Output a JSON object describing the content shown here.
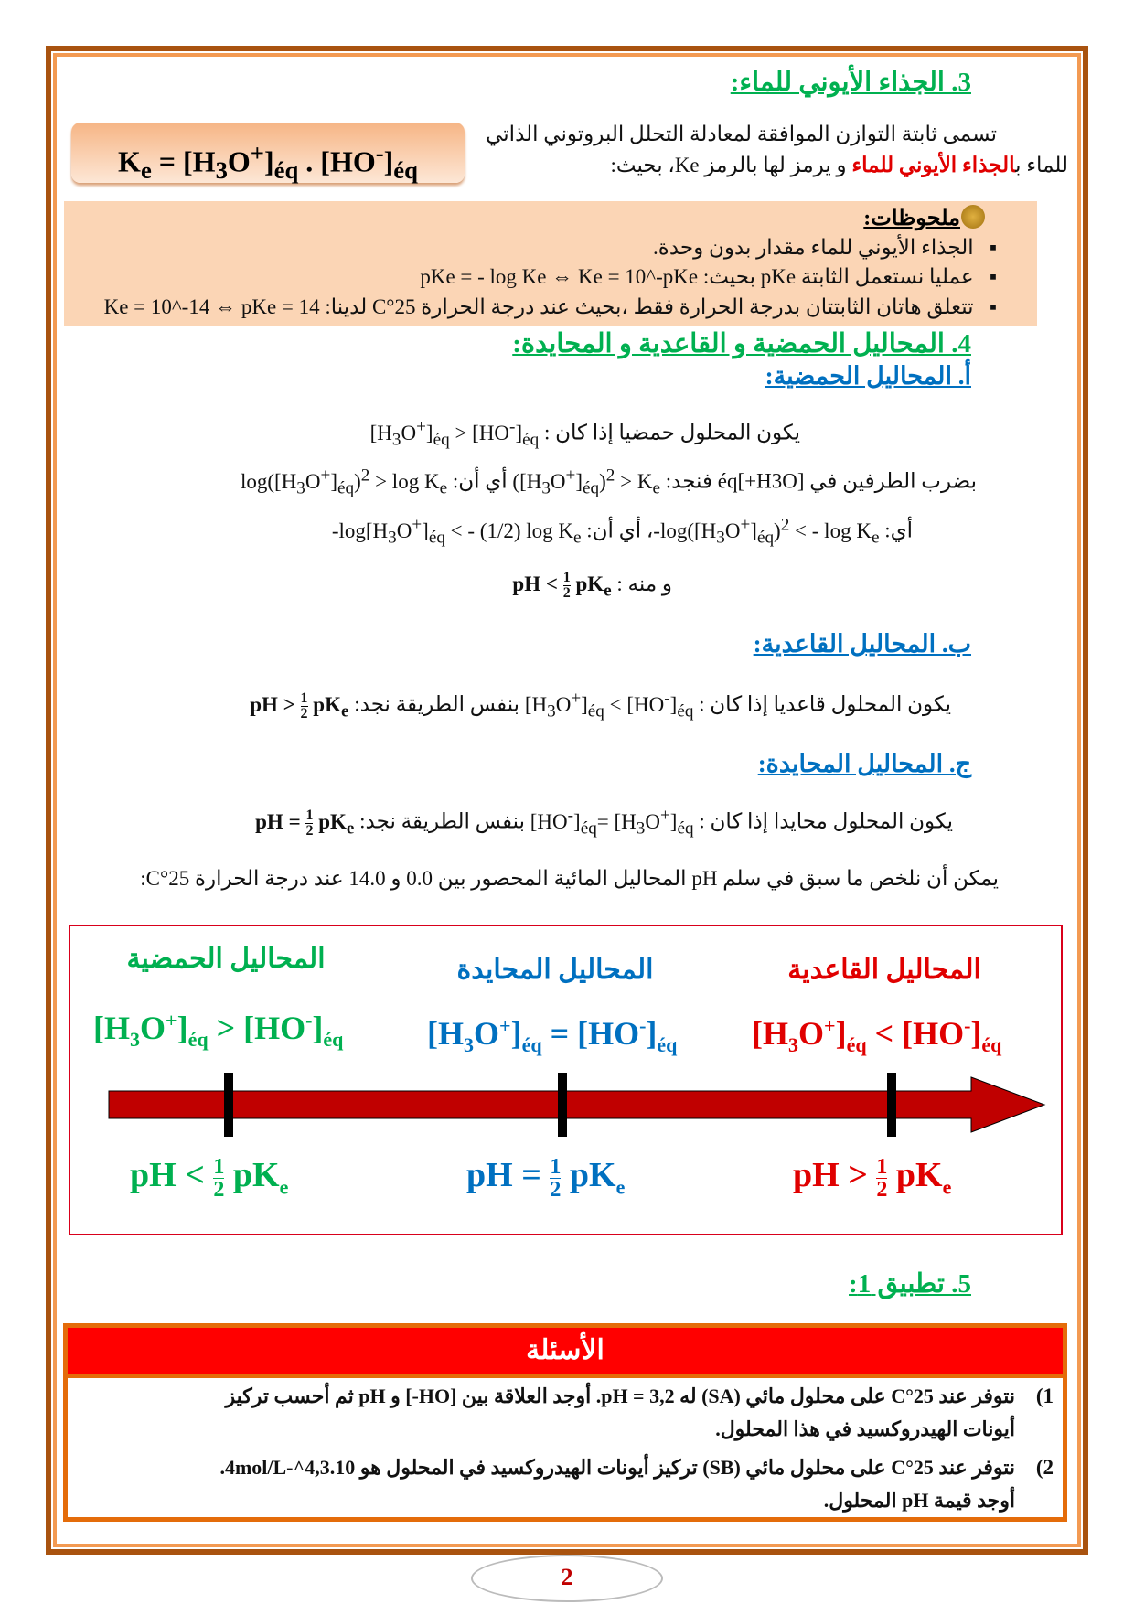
{
  "section3": {
    "title": "3. الجذاء الأيوني للماء:",
    "intro1": "تسمى ثابتة التوازن الموافقة لمعادلة التحلل البروتوني الذاتي",
    "intro2_a": "للماء ب",
    "intro2_b": "الجذاء الأيوني للماء",
    "intro2_c": " و يرمز لها بالرمز Ke، بحيث:",
    "formula": "Ke = [H3O+]éq . [HO-]éq"
  },
  "notes": {
    "title": "ملحوظات:",
    "items": [
      "الجذاء الأيوني للماء مقدار بدون وحدة.",
      "عمليا نستعمل الثابتة pKe بحيث: pKe = - log Ke ⇔ Ke = 10^-pKe",
      "تتعلق هاتان الثابتتان بدرجة الحرارة فقط ،بحيث عند درجة الحرارة 25°C لدينا: Ke = 10^-14 ⇔ pKe = 14"
    ]
  },
  "section4": {
    "title": "4. المحاليل الحمضية و القاعدية و المحايدة:",
    "a_title": "أ.  المحاليل الحمضية:",
    "a_lines": [
      "يكون المحلول حمضيا إذا كان :",
      "بضرب الطرفين في [H3O+]éq فنجد:",
      "أي:",
      "و منه :"
    ],
    "b_title": "ب.  المحاليل القاعدية:",
    "b_line": "يكون المحلول قاعديا إذا كان :",
    "b_mid": "بنفس الطريقة نجد:",
    "c_title": "ج.  المحاليل المحايدة:",
    "c_line": "يكون المحلول محايدا إذا كان :",
    "c_mid": "بنفس الطريقة نجد:",
    "summary": "يمكن أن نلخص ما سبق في سلم pH المحاليل المائية المحصور بين 0.0 و 14.0 عند درجة الحرارة 25°C:"
  },
  "scale": {
    "acid": "المحاليل الحمضية",
    "neutral": "المحاليل المحايدة",
    "basic": "المحاليل القاعدية",
    "colors": {
      "acid": "#00b050",
      "neutral": "#0070c0",
      "basic": "#e00000",
      "arrow": "#c00000"
    }
  },
  "section5": {
    "title": "5. تطبيق 1:",
    "header": "الأسئلة",
    "q1_num": "1)",
    "q1a": "نتوفر عند 25°C على محلول مائي (SA) له pH = 3,2. أوجد العلاقة بين [HO-] و pH ثم أحسب تركيز",
    "q1b": "أيونات الهيدروكسيد في هذا المحلول.",
    "q2_num": "2)",
    "q2a": "نتوفر عند 25°C على محلول مائي (SB) تركيز أيونات الهيدروكسيد في المحلول هو 4,3.10^-4mol/L.",
    "q2b": "أوجد قيمة pH المحلول."
  },
  "page_number": "2"
}
